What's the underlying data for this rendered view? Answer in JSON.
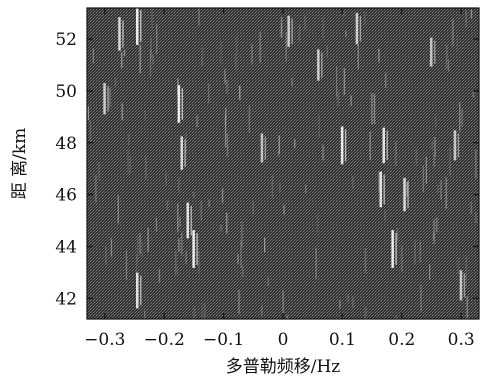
{
  "chart_data": {
    "type": "heatmap",
    "title": "",
    "xlabel": "多普勒频移/Hz",
    "ylabel": "距 离/km",
    "xlim": [
      -0.33,
      0.33
    ],
    "ylim": [
      41.2,
      53.2
    ],
    "x_ticks": [
      -0.3,
      -0.2,
      -0.1,
      0,
      0.1,
      0.2,
      0.3
    ],
    "x_tick_labels": [
      "−0.3",
      "−0.2",
      "−0.1",
      "0",
      "0.1",
      "0.2",
      "0.3"
    ],
    "y_ticks": [
      42,
      44,
      46,
      48,
      50,
      52
    ],
    "y_tick_labels": [
      "42",
      "44",
      "46",
      "48",
      "50",
      "52"
    ],
    "grid": false,
    "colormap": "gray",
    "background_color": "#2b2b2b",
    "highlights": [
      {
        "x": -0.245,
        "y": 52.5,
        "intensity": 0.9
      },
      {
        "x": -0.275,
        "y": 52.2,
        "intensity": 0.7
      },
      {
        "x": -0.175,
        "y": 49.5,
        "intensity": 0.9
      },
      {
        "x": -0.17,
        "y": 47.6,
        "intensity": 0.7
      },
      {
        "x": -0.16,
        "y": 45.0,
        "intensity": 0.8
      },
      {
        "x": -0.15,
        "y": 43.9,
        "intensity": 0.9
      },
      {
        "x": -0.245,
        "y": 42.3,
        "intensity": 0.8
      },
      {
        "x": 0.1,
        "y": 47.9,
        "intensity": 0.9
      },
      {
        "x": 0.17,
        "y": 47.9,
        "intensity": 0.8
      },
      {
        "x": 0.165,
        "y": 46.2,
        "intensity": 0.8
      },
      {
        "x": 0.205,
        "y": 46.0,
        "intensity": 0.7
      },
      {
        "x": 0.185,
        "y": 43.9,
        "intensity": 0.9
      },
      {
        "x": 0.06,
        "y": 51.0,
        "intensity": 0.6
      },
      {
        "x": 0.01,
        "y": 52.3,
        "intensity": 0.6
      },
      {
        "x": 0.25,
        "y": 51.5,
        "intensity": 0.5
      },
      {
        "x": -0.035,
        "y": 47.8,
        "intensity": 0.5
      },
      {
        "x": 0.125,
        "y": 52.4,
        "intensity": 0.6
      },
      {
        "x": -0.3,
        "y": 49.7,
        "intensity": 0.6
      },
      {
        "x": 0.29,
        "y": 47.9,
        "intensity": 0.55
      },
      {
        "x": 0.3,
        "y": 42.5,
        "intensity": 0.55
      }
    ]
  }
}
